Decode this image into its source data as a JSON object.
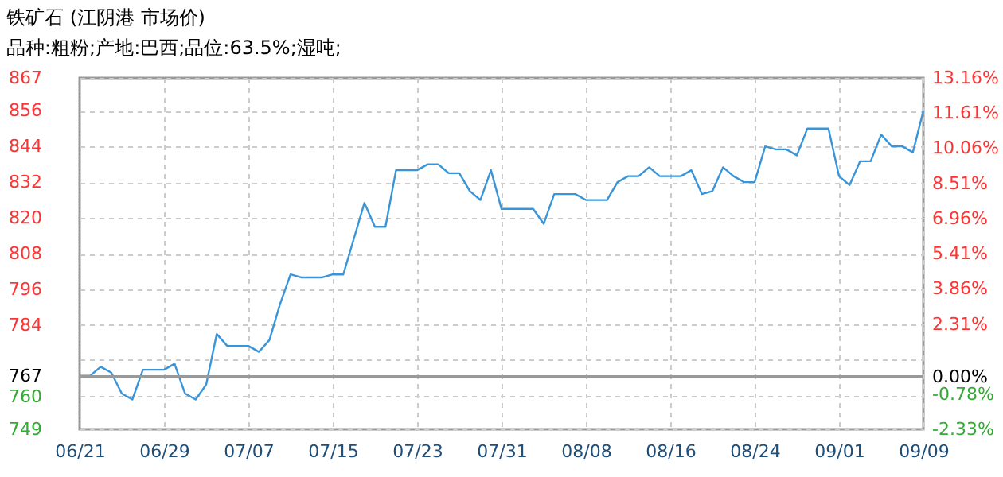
{
  "chart_data": {
    "type": "line",
    "title": "铁矿石 (江阴港 市场价)",
    "subtitle": "品种:粗粉;产地:巴西;品位:63.5%;湿吨;",
    "x": [
      "--06-21",
      "--06-22",
      "--06-23",
      "--06-24",
      "--06-25",
      "--06-26",
      "--06-27",
      "--06-29",
      "--06-30",
      "--07-01",
      "--07-02",
      "--07-03",
      "--07-04",
      "--07-05",
      "--07-07",
      "--07-08",
      "--07-09",
      "--07-10",
      "--07-11",
      "--07-12",
      "--07-14",
      "--07-15",
      "--07-16",
      "--07-17",
      "--07-18",
      "--07-19",
      "--07-20",
      "--07-21",
      "--07-23",
      "--07-24",
      "--07-25",
      "--07-26",
      "--07-27",
      "--07-28",
      "--07-29",
      "--07-30",
      "--07-31",
      "--08-03",
      "--08-04",
      "--08-05",
      "--08-07",
      "--08-08",
      "--08-10",
      "--08-11",
      "--08-12",
      "--08-13",
      "--08-14",
      "--08-15",
      "--08-17",
      "--08-18",
      "--08-19",
      "--08-20",
      "--08-21",
      "--08-22",
      "--08-23",
      "--08-24",
      "--08-25",
      "--08-26",
      "--08-27",
      "--08-28",
      "--08-29",
      "--08-31",
      "--09-01",
      "--09-02",
      "--09-03",
      "--09-04",
      "--09-05",
      "--09-06",
      "--09-07",
      "--09-08",
      "--09-09"
    ],
    "values": [
      767,
      767,
      770,
      768,
      761,
      759,
      769,
      769,
      771,
      761,
      759,
      764,
      781,
      777,
      777,
      775,
      779,
      791,
      801,
      800,
      800,
      801,
      801,
      813,
      825,
      817,
      817,
      836,
      836,
      838,
      838,
      835,
      835,
      829,
      826,
      836,
      823,
      823,
      818,
      828,
      828,
      826,
      826,
      832,
      834,
      834,
      837,
      834,
      834,
      836,
      828,
      829,
      837,
      834,
      832,
      832,
      844,
      843,
      843,
      841,
      850,
      850,
      834,
      831,
      839,
      839,
      848,
      844,
      844,
      842,
      856
    ],
    "color": "#3a95d8",
    "xlim": [
      "--06-21",
      "--09-09"
    ],
    "xticks": [
      {
        "value": "--06-21",
        "label": "06/21"
      },
      {
        "value": "--06-29",
        "label": "06/29"
      },
      {
        "value": "--07-07",
        "label": "07/07"
      },
      {
        "value": "--07-15",
        "label": "07/15"
      },
      {
        "value": "--07-23",
        "label": "07/23"
      },
      {
        "value": "--07-31",
        "label": "07/31"
      },
      {
        "value": "--08-08",
        "label": "08/08"
      },
      {
        "value": "--08-16",
        "label": "08/16"
      },
      {
        "value": "--08-24",
        "label": "08/24"
      },
      {
        "value": "--09-01",
        "label": "09/01"
      },
      {
        "value": "--09-09",
        "label": "09/09"
      }
    ],
    "ylim": [
      749,
      867
    ],
    "yticks": [
      749,
      760,
      767,
      {
        "value": 772.6,
        "label": null
      },
      784,
      796,
      808,
      820,
      832,
      844,
      856,
      867
    ],
    "y2lim": [
      -2.33,
      13.16
    ],
    "y2ticks": [
      {
        "value": -2.33,
        "label": "-2.33%"
      },
      {
        "value": -0.78,
        "label": "-0.78%"
      },
      {
        "value": 0,
        "label": "0.00%"
      },
      {
        "value": 0.76,
        "label": null
      },
      {
        "value": 2.31,
        "label": "2.31%"
      },
      {
        "value": 3.86,
        "label": "3.86%"
      },
      {
        "value": 5.41,
        "label": "5.41%"
      },
      {
        "value": 6.96,
        "label": "6.96%"
      },
      {
        "value": 8.51,
        "label": "8.51%"
      },
      {
        "value": 10.06,
        "label": "10.06%"
      },
      {
        "value": 11.61,
        "label": "11.61%"
      },
      {
        "value": 13.16,
        "label": "13.16%"
      }
    ],
    "ref_lines": [
      {
        "axis": "y2",
        "value": 0,
        "color": "#999999"
      }
    ],
    "grid": true
  }
}
